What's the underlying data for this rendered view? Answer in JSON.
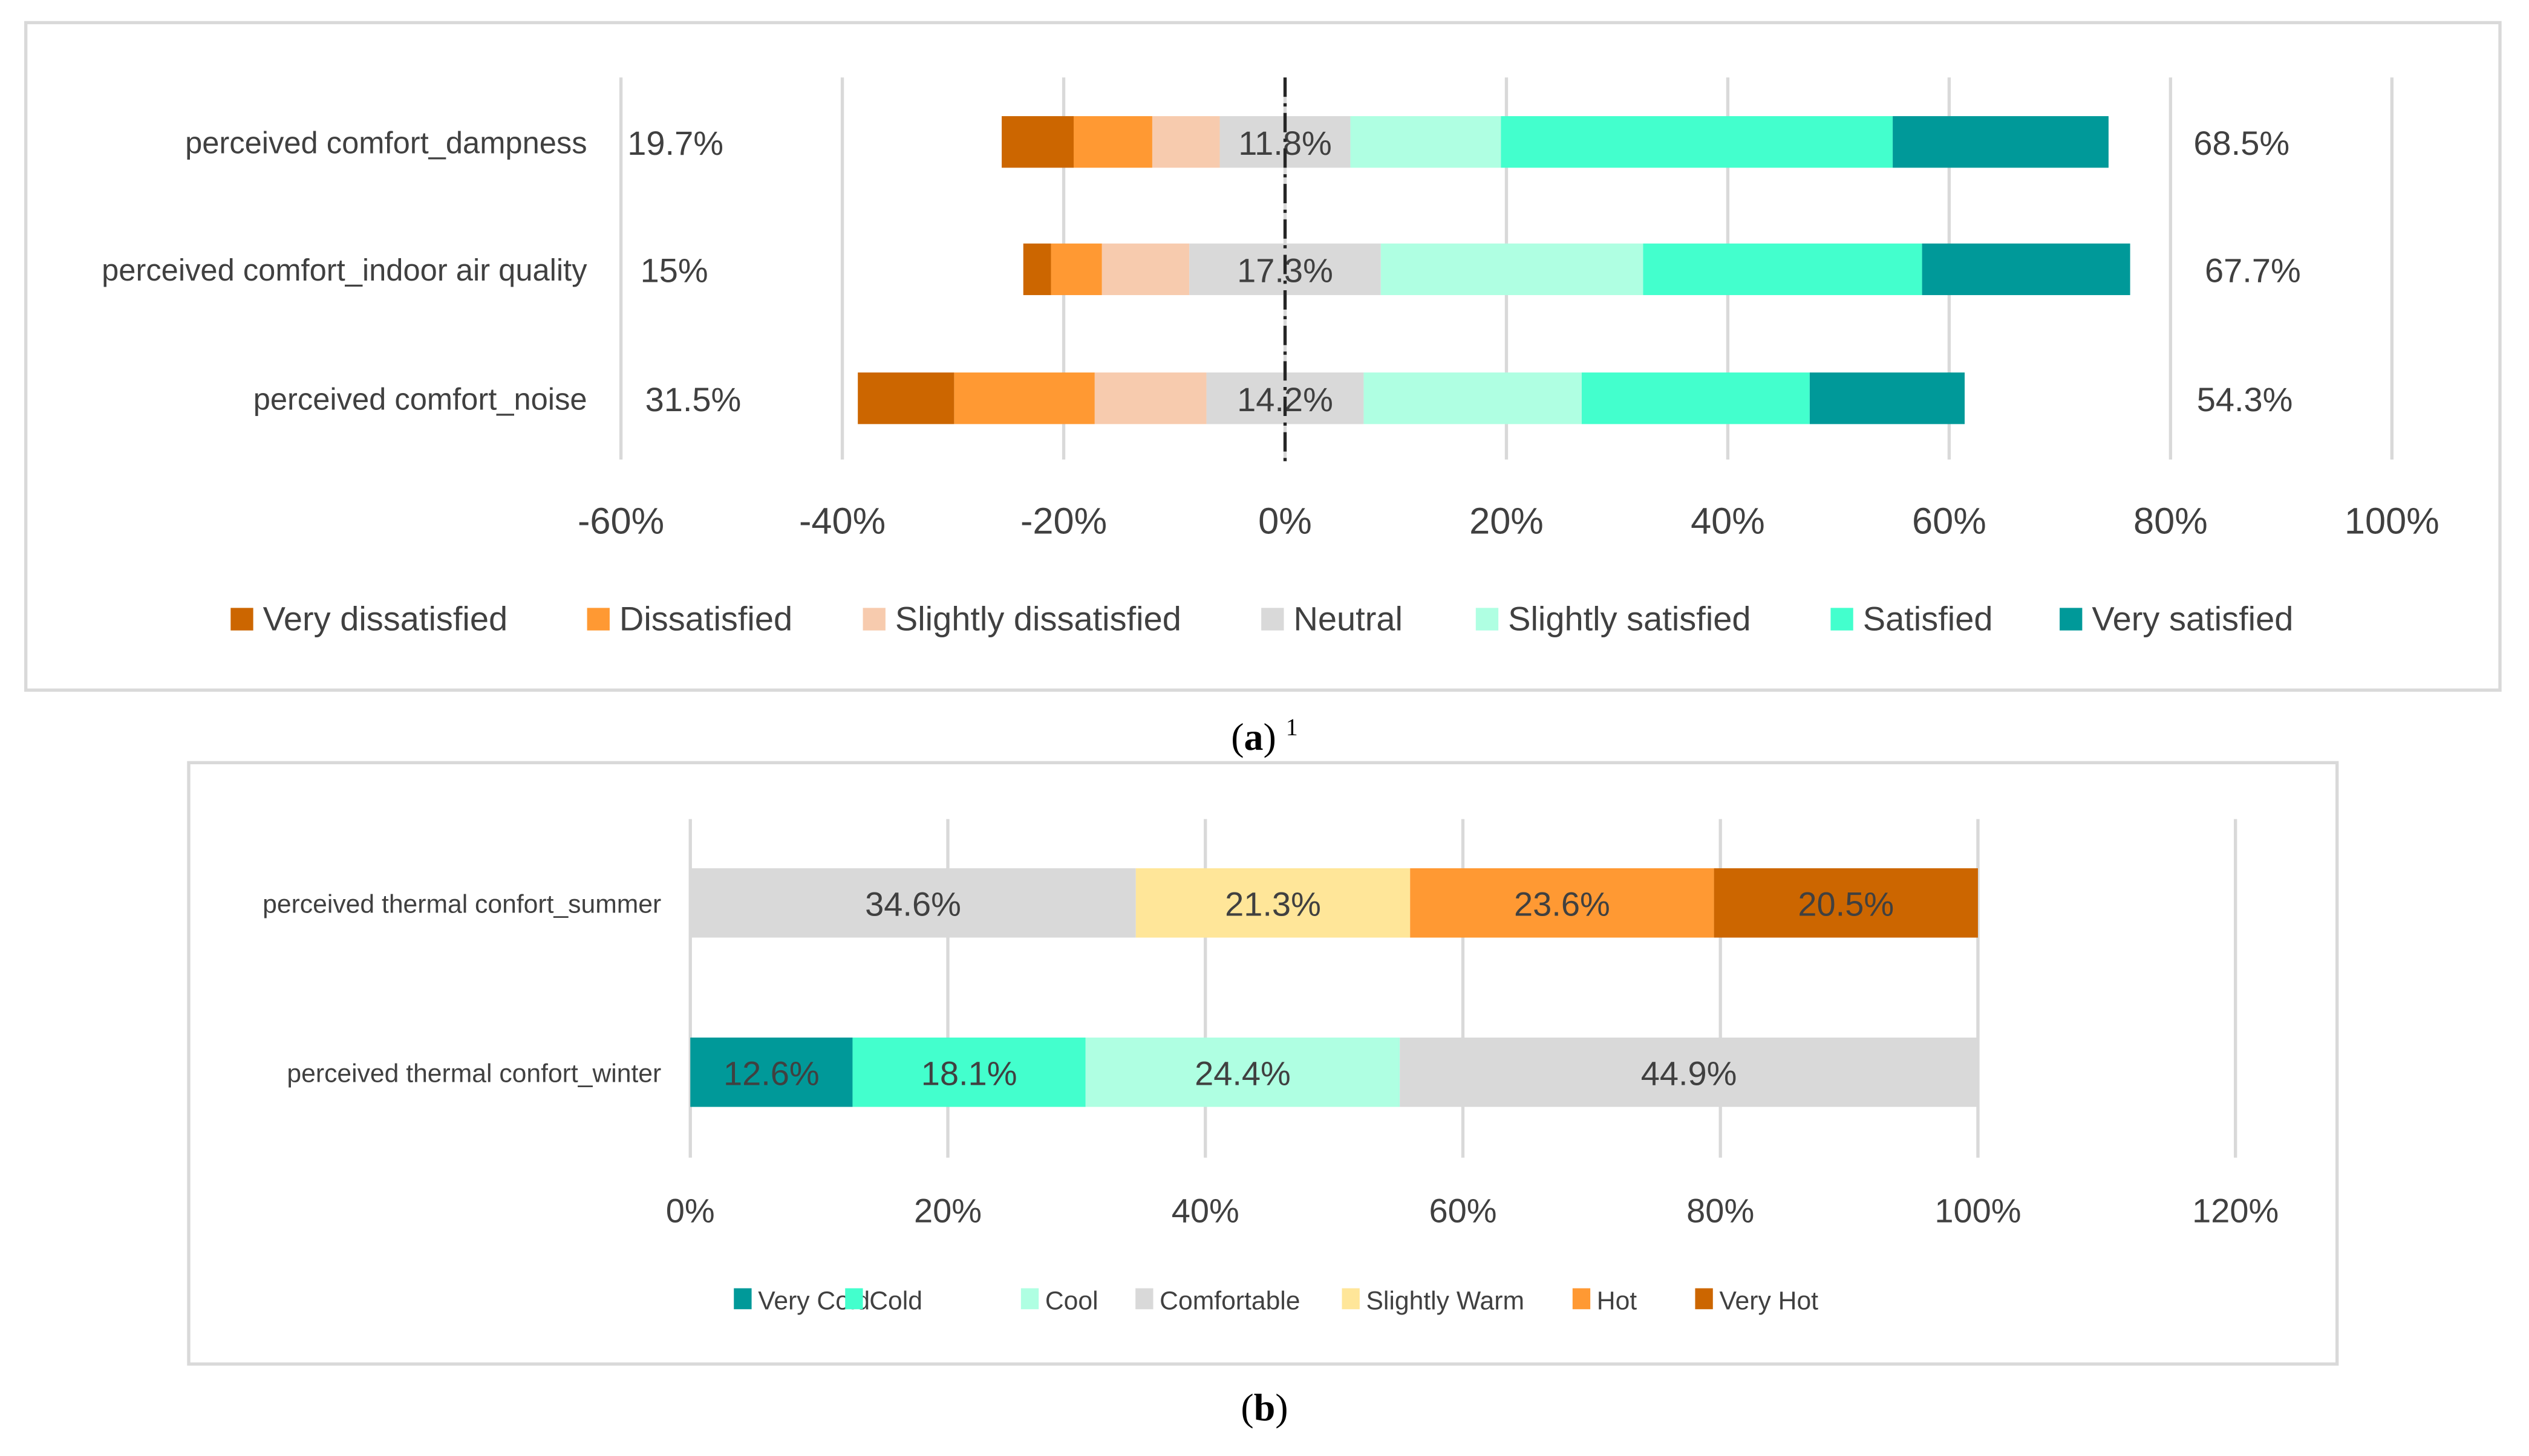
{
  "chart_data": [
    {
      "type": "bar",
      "subtype": "diverging-stacked-horizontal",
      "caption": "(a)",
      "caption_letter": "a",
      "caption_note": "1",
      "categories": [
        "perceived comfort_dampness",
        "perceived comfort_indoor air quality",
        "perceived comfort_noise"
      ],
      "xlim": [
        -60,
        100
      ],
      "x_ticks": [
        "-60%",
        "-40%",
        "-20%",
        "0%",
        "20%",
        "40%",
        "60%",
        "80%",
        "100%"
      ],
      "x_tick_values": [
        -60,
        -40,
        -20,
        0,
        20,
        40,
        60,
        80,
        100
      ],
      "grid": true,
      "legend_position": "bottom",
      "series": [
        {
          "name": "Very dissatisfied",
          "color": "#CC6600",
          "side": "negative",
          "values": [
            6.5,
            2.5,
            8.7
          ]
        },
        {
          "name": "Dissatisfied",
          "color": "#FF9933",
          "side": "negative",
          "values": [
            7.1,
            4.6,
            12.7
          ]
        },
        {
          "name": "Slightly dissatisfied",
          "color": "#F7CBAE",
          "side": "negative",
          "values": [
            6.1,
            7.9,
            10.1
          ]
        },
        {
          "name": "Neutral",
          "color": "#D9D9D9",
          "side": "center",
          "values": [
            11.8,
            17.3,
            14.2
          ]
        },
        {
          "name": "Slightly satisfied",
          "color": "#AFFFE2",
          "side": "positive",
          "values": [
            13.6,
            23.7,
            19.7
          ]
        },
        {
          "name": "Satisfied",
          "color": "#43FFCD",
          "side": "positive",
          "values": [
            35.4,
            25.2,
            20.6
          ]
        },
        {
          "name": "Very satisfied",
          "color": "#009999",
          "side": "positive",
          "values": [
            19.5,
            18.8,
            14.0
          ]
        }
      ],
      "neutral_labels": [
        "11.8%",
        "17.3%",
        "14.2%"
      ],
      "dissatisfied_totals": [
        "19.7%",
        "15%",
        "31.5%"
      ],
      "satisfied_totals": [
        "68.5%",
        "67.7%",
        "54.3%"
      ]
    },
    {
      "type": "bar",
      "subtype": "stacked-horizontal",
      "caption": "(b)",
      "caption_letter": "b",
      "categories": [
        "perceived thermal confort_summer",
        "perceived thermal confort_winter"
      ],
      "xlim": [
        0,
        120
      ],
      "x_ticks": [
        "0%",
        "20%",
        "40%",
        "60%",
        "80%",
        "100%",
        "120%"
      ],
      "x_tick_values": [
        0,
        20,
        40,
        60,
        80,
        100,
        120
      ],
      "grid": true,
      "legend_position": "bottom",
      "series": [
        {
          "name": "Very Cold",
          "color": "#009999",
          "values": [
            0,
            12.6
          ]
        },
        {
          "name": "Cold",
          "color": "#43FFCD",
          "values": [
            0,
            18.1
          ]
        },
        {
          "name": "Cool",
          "color": "#AFFFE2",
          "values": [
            0,
            24.4
          ]
        },
        {
          "name": "Comfortable",
          "color": "#D9D9D9",
          "values": [
            34.6,
            44.9
          ]
        },
        {
          "name": "Slightly Warm",
          "color": "#FFE699",
          "values": [
            21.3,
            0
          ]
        },
        {
          "name": "Hot",
          "color": "#FF9933",
          "values": [
            23.6,
            0
          ]
        },
        {
          "name": "Very Hot",
          "color": "#CC6600",
          "values": [
            20.5,
            0
          ]
        }
      ],
      "data_labels": [
        [
          "",
          "12.6%"
        ],
        [
          "",
          "18.1%"
        ],
        [
          "",
          "24.4%"
        ],
        [
          "34.6%",
          "44.9%"
        ],
        [
          "21.3%",
          ""
        ],
        [
          "23.6%",
          ""
        ],
        [
          "20.5%",
          ""
        ]
      ]
    }
  ]
}
